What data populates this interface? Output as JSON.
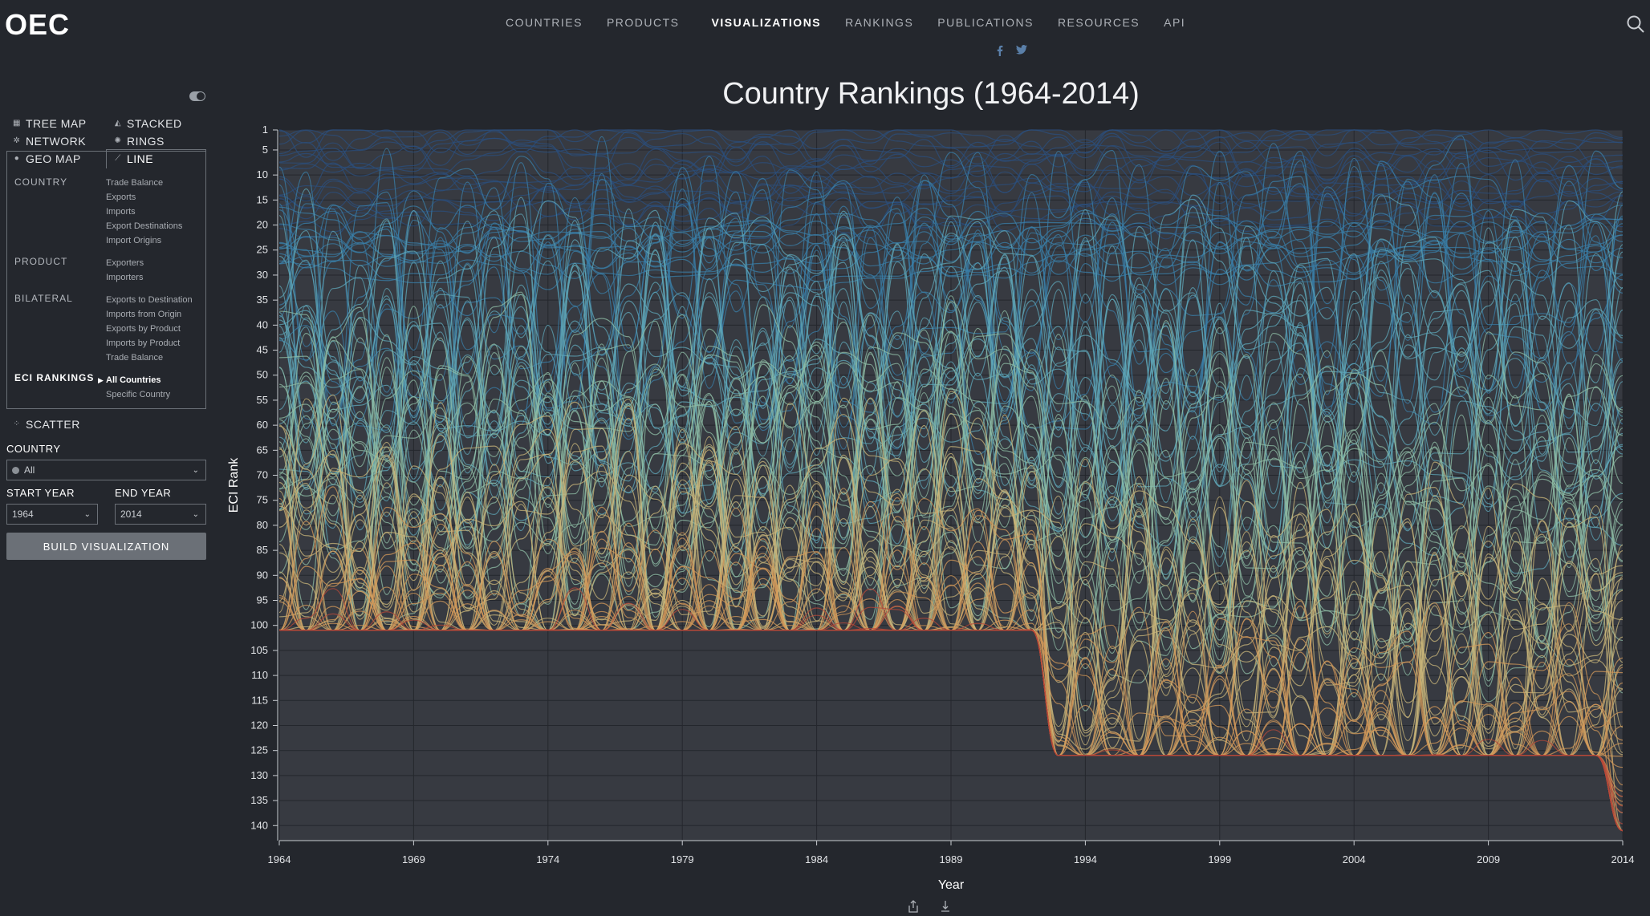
{
  "header": {
    "logo": "OEC",
    "nav": [
      "COUNTRIES",
      "PRODUCTS",
      "VISUALIZATIONS",
      "RANKINGS",
      "PUBLICATIONS",
      "RESOURCES",
      "API"
    ],
    "active_nav": "VISUALIZATIONS",
    "social_icons": [
      "facebook-icon",
      "twitter-icon"
    ],
    "search_icon": "search-icon"
  },
  "sidebar": {
    "viz_types": [
      {
        "label": "TREE MAP",
        "icon": "treemap-icon"
      },
      {
        "label": "STACKED",
        "icon": "stacked-icon"
      },
      {
        "label": "NETWORK",
        "icon": "network-icon"
      },
      {
        "label": "RINGS",
        "icon": "rings-icon"
      },
      {
        "label": "GEO MAP",
        "icon": "geomap-icon"
      },
      {
        "label": "LINE",
        "icon": "line-icon"
      }
    ],
    "sections": [
      {
        "title": "COUNTRY",
        "items": [
          "Trade Balance",
          "Exports",
          "Imports",
          "Export Destinations",
          "Import Origins"
        ]
      },
      {
        "title": "PRODUCT",
        "items": [
          "Exporters",
          "Importers"
        ]
      },
      {
        "title": "BILATERAL",
        "items": [
          "Exports to Destination",
          "Imports from Origin",
          "Exports by Product",
          "Imports by Product",
          "Trade Balance"
        ]
      },
      {
        "title": "ECI RANKINGS",
        "items": [
          "All Countries",
          "Specific Country"
        ]
      }
    ],
    "scatter_label": "SCATTER",
    "country_label": "COUNTRY",
    "country_value": "All",
    "start_year_label": "START YEAR",
    "start_year_value": "1964",
    "end_year_label": "END YEAR",
    "end_year_value": "2014",
    "build_button": "BUILD VISUALIZATION"
  },
  "chart_data": {
    "type": "line",
    "title": "Country Rankings (1964-2014)",
    "xlabel": "Year",
    "ylabel": "ECI Rank",
    "x_ticks": [
      1964,
      1969,
      1974,
      1979,
      1984,
      1989,
      1994,
      1999,
      2004,
      2009,
      2014
    ],
    "y_ticks": [
      1,
      5,
      10,
      15,
      20,
      25,
      30,
      35,
      40,
      45,
      50,
      55,
      60,
      65,
      70,
      75,
      80,
      85,
      90,
      95,
      100,
      105,
      110,
      115,
      120,
      125,
      130,
      135,
      140
    ],
    "xlim": [
      1964,
      2014
    ],
    "ylim": [
      1,
      143
    ],
    "y_inverted": true,
    "grid": true,
    "series_count": 140,
    "color_scale": [
      "#2b4f7e",
      "#3a7fa8",
      "#5fa7b8",
      "#8fbea6",
      "#c9b67a",
      "#d49a5a",
      "#b84a3a"
    ]
  },
  "footer": {
    "icons": [
      "share-icon",
      "download-icon"
    ]
  }
}
